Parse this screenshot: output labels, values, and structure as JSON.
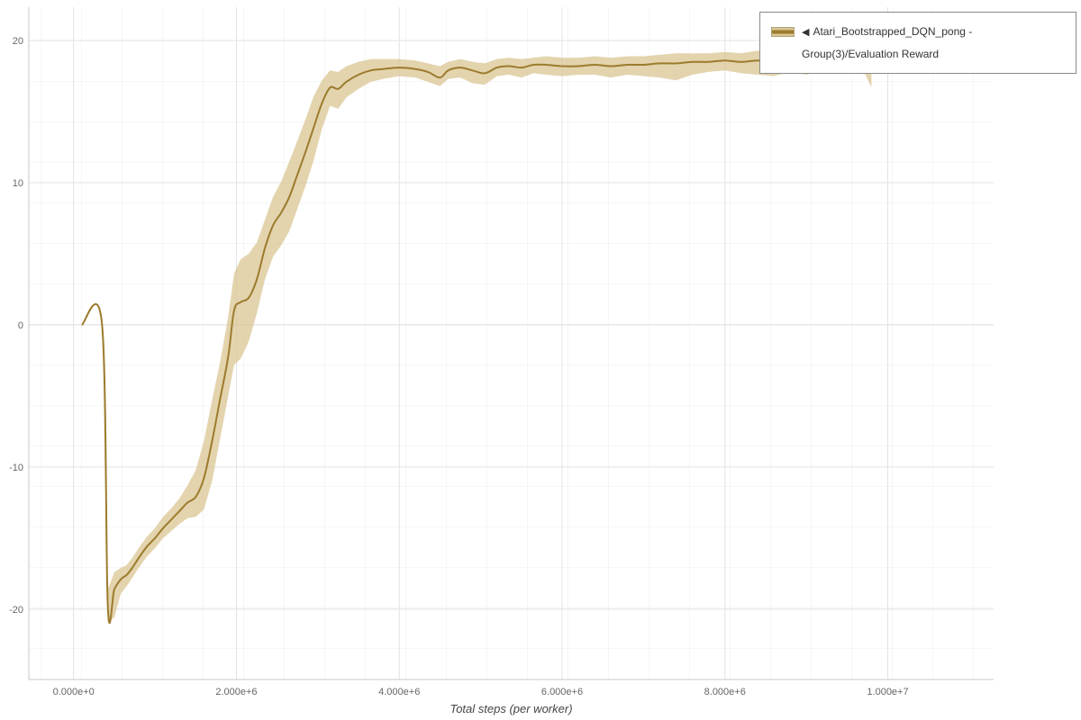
{
  "legend": {
    "marker": "◀",
    "label": "Atari_Bootstrapped_DQN_pong - Group(3)/Evaluation Reward"
  },
  "chart_data": {
    "type": "line",
    "title": "",
    "xlabel": "Total steps (per worker)",
    "ylabel": "",
    "grid": true,
    "legend_position": "top-right",
    "x_range": [
      -550000,
      11300000
    ],
    "y_range": [
      -24.95,
      22.35
    ],
    "x_ticks": [
      {
        "value": 0,
        "label": "0.000e+0"
      },
      {
        "value": 2000000,
        "label": "2.000e+6"
      },
      {
        "value": 4000000,
        "label": "4.000e+6"
      },
      {
        "value": 6000000,
        "label": "6.000e+6"
      },
      {
        "value": 8000000,
        "label": "8.000e+6"
      },
      {
        "value": 10000000,
        "label": "1.000e+7"
      }
    ],
    "y_ticks": [
      {
        "value": -20,
        "label": "-20"
      },
      {
        "value": -10,
        "label": "-10"
      },
      {
        "value": 0,
        "label": "0"
      },
      {
        "value": 10,
        "label": "10"
      },
      {
        "value": 20,
        "label": "20"
      }
    ],
    "series": [
      {
        "name": "Atari_Bootstrapped_DQN_pong - Group(3)/Evaluation Reward",
        "color": "#9c7b2d",
        "band_color": "#d9c693",
        "x": [
          100000.0,
          350000.0,
          420000.0,
          500000.0,
          580000.0,
          650000.0,
          720000.0,
          800000.0,
          900000.0,
          1000000.0,
          1100000.0,
          1200000.0,
          1300000.0,
          1400000.0,
          1500000.0,
          1600000.0,
          1700000.0,
          1800000.0,
          1900000.0,
          1970000.0,
          2050000.0,
          2150000.0,
          2250000.0,
          2350000.0,
          2450000.0,
          2550000.0,
          2650000.0,
          2750000.0,
          2850000.0,
          2950000.0,
          3050000.0,
          3150000.0,
          3250000.0,
          3350000.0,
          3500000.0,
          3650000.0,
          3800000.0,
          4000000.0,
          4200000.0,
          4350000.0,
          4500000.0,
          4600000.0,
          4750000.0,
          4900000.0,
          5050000.0,
          5200000.0,
          5350000.0,
          5500000.0,
          5650000.0,
          5800000.0,
          6000000.0,
          6200000.0,
          6400000.0,
          6600000.0,
          6800000.0,
          7000000.0,
          7200000.0,
          7400000.0,
          7600000.0,
          7800000.0,
          8000000.0,
          8200000.0,
          8400000.0,
          8600000.0,
          8800000.0,
          9000000.0,
          9150000.0,
          9300000.0,
          9450000.0,
          9600000.0,
          9700000.0,
          9800000.0
        ],
        "mean": [
          0,
          0,
          -19.8,
          -18.6,
          -17.9,
          -17.6,
          -17.1,
          -16.4,
          -15.6,
          -15.0,
          -14.3,
          -13.7,
          -13.1,
          -12.5,
          -12.1,
          -10.8,
          -8.2,
          -5.2,
          -2.2,
          1.0,
          1.6,
          1.9,
          3.2,
          5.4,
          7.0,
          7.9,
          9.0,
          10.6,
          12.2,
          13.9,
          15.6,
          16.7,
          16.6,
          17.1,
          17.6,
          17.9,
          18.0,
          18.1,
          18.0,
          17.8,
          17.4,
          17.9,
          18.1,
          17.9,
          17.7,
          18.1,
          18.2,
          18.1,
          18.3,
          18.3,
          18.2,
          18.2,
          18.3,
          18.2,
          18.3,
          18.3,
          18.4,
          18.4,
          18.5,
          18.5,
          18.6,
          18.5,
          18.6,
          18.5,
          18.6,
          18.7,
          18.6,
          18.7,
          18.6,
          18.8,
          18.9,
          18.3
        ],
        "lower": [
          0,
          0,
          -20.9,
          -20.6,
          -18.9,
          -18.4,
          -17.8,
          -17.1,
          -16.3,
          -15.7,
          -15.0,
          -14.5,
          -14.0,
          -13.6,
          -13.5,
          -13.0,
          -11.0,
          -8.0,
          -5.0,
          -2.8,
          -2.4,
          -1.2,
          0.8,
          3.2,
          4.8,
          5.6,
          6.6,
          8.2,
          9.8,
          11.6,
          13.8,
          15.4,
          15.2,
          16.0,
          16.6,
          17.1,
          17.3,
          17.5,
          17.4,
          17.1,
          16.8,
          17.3,
          17.4,
          17.0,
          16.9,
          17.5,
          17.6,
          17.4,
          17.7,
          17.6,
          17.5,
          17.6,
          17.6,
          17.4,
          17.6,
          17.5,
          17.4,
          17.2,
          17.6,
          17.8,
          17.9,
          17.7,
          17.6,
          17.5,
          17.8,
          17.6,
          17.8,
          17.9,
          17.7,
          18.0,
          17.9,
          16.7
        ],
        "upper": [
          0,
          0,
          -18.6,
          -17.4,
          -17.1,
          -16.9,
          -16.4,
          -15.7,
          -14.9,
          -14.3,
          -13.5,
          -12.9,
          -12.2,
          -11.3,
          -10.2,
          -8.2,
          -5.3,
          -2.6,
          0.6,
          3.6,
          4.6,
          5.0,
          5.8,
          7.4,
          9.0,
          10.1,
          11.5,
          13.0,
          14.5,
          16.1,
          17.2,
          17.9,
          17.8,
          18.2,
          18.5,
          18.7,
          18.7,
          18.7,
          18.6,
          18.4,
          18.2,
          18.5,
          18.7,
          18.5,
          18.4,
          18.7,
          18.8,
          18.7,
          18.8,
          18.9,
          18.8,
          18.8,
          18.9,
          18.8,
          18.9,
          18.9,
          19.0,
          19.1,
          19.1,
          19.1,
          19.2,
          19.1,
          19.3,
          19.2,
          19.3,
          19.5,
          19.3,
          19.4,
          19.3,
          19.5,
          19.5,
          19.3
        ]
      }
    ],
    "colors": {
      "grid_fine": "#ececec",
      "grid_major": "#e0e3e7",
      "spine": "#c4c8cc",
      "tick_text": "#666666"
    }
  }
}
